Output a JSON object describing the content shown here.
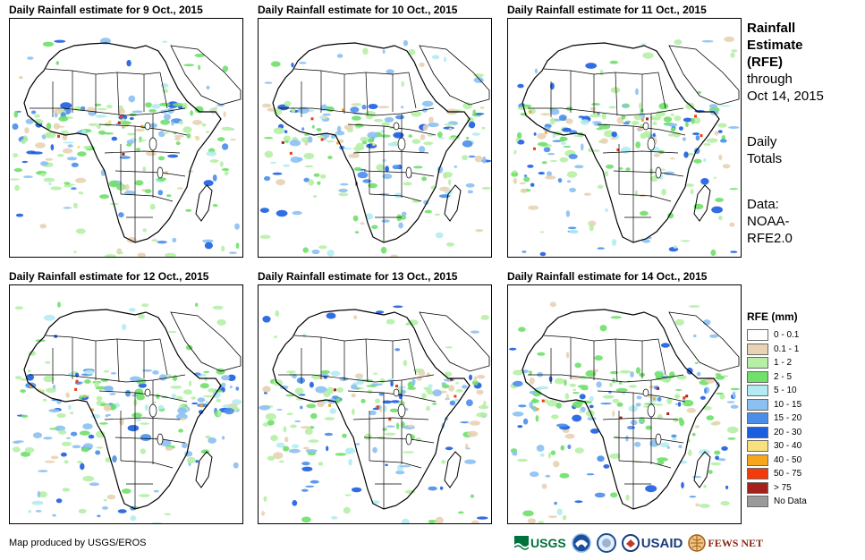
{
  "panels": [
    {
      "title": "Daily Rainfall estimate for 9 Oct., 2015",
      "seed": 9
    },
    {
      "title": "Daily Rainfall estimate for 10 Oct., 2015",
      "seed": 10
    },
    {
      "title": "Daily Rainfall estimate for 11 Oct., 2015",
      "seed": 11
    },
    {
      "title": "Daily Rainfall estimate for 12 Oct., 2015",
      "seed": 12
    },
    {
      "title": "Daily Rainfall estimate for 13 Oct., 2015",
      "seed": 13
    },
    {
      "title": "Daily Rainfall estimate for 14 Oct., 2015",
      "seed": 14
    }
  ],
  "sidebar": {
    "title_line1": "Rainfall",
    "title_line2": "Estimate",
    "title_line3": "(RFE)",
    "through_label": "through",
    "through_date": "Oct 14, 2015",
    "totals_line1": "Daily",
    "totals_line2": "Totals",
    "data_line1": "Data:",
    "data_line2": "NOAA-",
    "data_line3": "RFE2.0"
  },
  "legend": {
    "title": "RFE (mm)",
    "items": [
      {
        "label": "0 - 0.1",
        "color": "#ffffff"
      },
      {
        "label": "0.1 - 1",
        "color": "#e8d3b4"
      },
      {
        "label": "1 - 2",
        "color": "#b6f0a6"
      },
      {
        "label": "2 - 5",
        "color": "#6fe06a"
      },
      {
        "label": "5 - 10",
        "color": "#b2ecf2"
      },
      {
        "label": "10 - 15",
        "color": "#8cc0f2"
      },
      {
        "label": "15 - 20",
        "color": "#4a8eea"
      },
      {
        "label": "20 - 30",
        "color": "#1c5ee0"
      },
      {
        "label": "30 - 40",
        "color": "#fae07c"
      },
      {
        "label": "40 - 50",
        "color": "#f7a51c"
      },
      {
        "label": "50 - 75",
        "color": "#f23a0a"
      },
      {
        "label": "> 75",
        "color": "#a3201c"
      },
      {
        "label": "No Data",
        "color": "#9a9a9a"
      }
    ]
  },
  "footer": {
    "credit": "Map produced by USGS/EROS",
    "usgs": "USGS",
    "usaid": "USAID",
    "fewsnet": "FEWS NET"
  }
}
